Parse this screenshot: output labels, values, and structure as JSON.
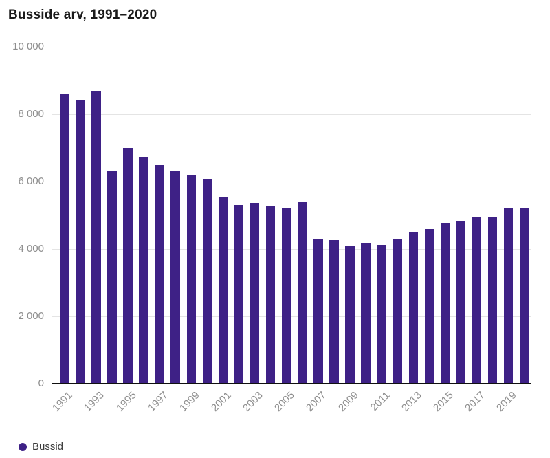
{
  "title": "Busside arv, 1991–2020",
  "legend": {
    "label": "Bussid"
  },
  "colors": {
    "bar": "#3e2186",
    "gridline": "#e4e4e4",
    "axis": "#101010",
    "tick_label": "#8e8e8e",
    "title_text": "#1a1a1a",
    "legend_text": "#3a3a3a",
    "background": "#ffffff"
  },
  "chart_data": {
    "type": "bar",
    "title": "Busside arv, 1991–2020",
    "xlabel": "",
    "ylabel": "",
    "ylim": [
      0,
      10000
    ],
    "grid": true,
    "legend_position": "bottom-left",
    "y_ticks": [
      {
        "value": 10000,
        "label": "10 000"
      },
      {
        "value": 8000,
        "label": "8 000"
      },
      {
        "value": 6000,
        "label": "6 000"
      },
      {
        "value": 4000,
        "label": "4 000"
      },
      {
        "value": 2000,
        "label": "2 000"
      },
      {
        "value": 0,
        "label": "0"
      }
    ],
    "x_tick_labels": [
      "1991",
      "1993",
      "1995",
      "1997",
      "1999",
      "2001",
      "2003",
      "2005",
      "2007",
      "2009",
      "2011",
      "2013",
      "2015",
      "2017",
      "2019"
    ],
    "categories": [
      "1991",
      "1992",
      "1993",
      "1994",
      "1995",
      "1996",
      "1997",
      "1998",
      "1999",
      "2000",
      "2001",
      "2002",
      "2003",
      "2004",
      "2005",
      "2006",
      "2007",
      "2008",
      "2009",
      "2010",
      "2011",
      "2012",
      "2013",
      "2014",
      "2015",
      "2016",
      "2017",
      "2018",
      "2019",
      "2020"
    ],
    "series": [
      {
        "name": "Bussid",
        "color": "#3e2186",
        "values": [
          8600,
          8400,
          8690,
          6300,
          7000,
          6710,
          6500,
          6310,
          6180,
          6060,
          5530,
          5310,
          5370,
          5270,
          5210,
          5390,
          4300,
          4270,
          4100,
          4160,
          4120,
          4300,
          4490,
          4590,
          4760,
          4820,
          4950,
          4940,
          5210,
          5210
        ]
      }
    ]
  }
}
